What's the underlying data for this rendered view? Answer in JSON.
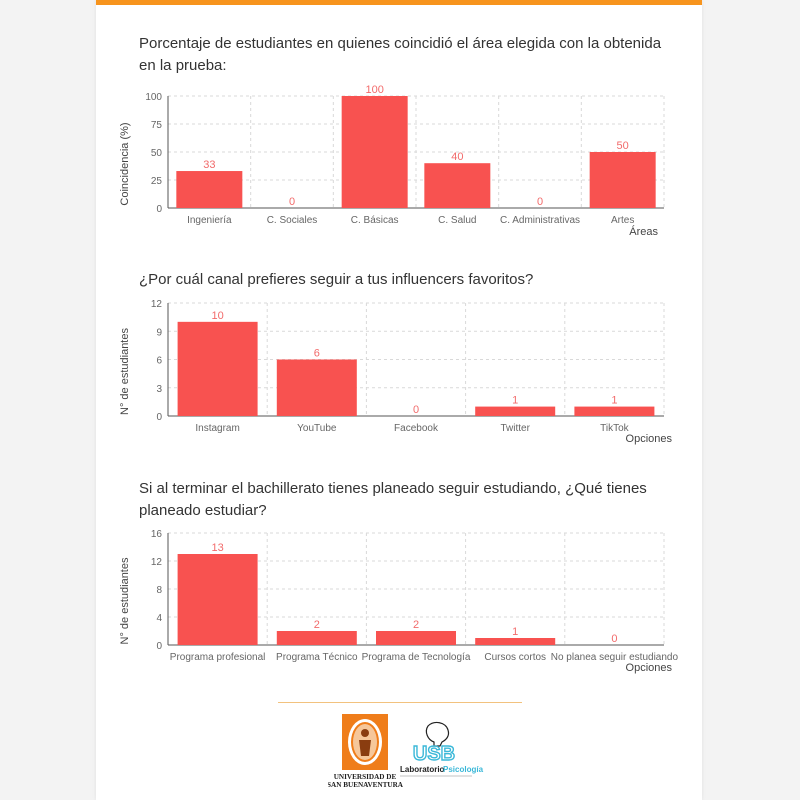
{
  "colors": {
    "accent_bar": "#f7941d",
    "bar_fill": "#f85250",
    "value_label": "#f26b6b",
    "grid": "#d9d9d9",
    "axis_text": "#666666",
    "logo_orange": "#ef7d1a",
    "logo_cyan": "#3bb8d8"
  },
  "logos": {
    "university_line1": "UNIVERSIDAD DE",
    "university_line2": "SAN BUENAVENTURA",
    "lab_letters": "USB",
    "lab_word1": "Laboratorio",
    "lab_word2": "Psicología",
    "lab_icon": "head-silhouette-icon",
    "university_icon": "university-seal-icon"
  },
  "chart_data": [
    {
      "type": "bar",
      "title": "Porcentaje de estudiantes en quienes coincidió el área elegida con la obtenida en la prueba:",
      "xlabel": "Áreas",
      "ylabel": "Coincidencia (%)",
      "ylim": [
        0,
        100
      ],
      "yticks": [
        0,
        25,
        50,
        75,
        100
      ],
      "grid": true,
      "categories": [
        "Ingeniería",
        "C. Sociales",
        "C. Básicas",
        "C. Salud",
        "C. Administrativas",
        "Artes"
      ],
      "values": [
        33,
        0,
        100,
        40,
        0,
        50
      ],
      "value_labels": [
        "33",
        "0",
        "100",
        "40",
        "0",
        "50"
      ]
    },
    {
      "type": "bar",
      "title": "¿Por cuál canal prefieres seguir a tus influencers favoritos?",
      "xlabel": "Opciones",
      "ylabel": "N° de estudiantes",
      "ylim": [
        0,
        12
      ],
      "yticks": [
        0,
        3,
        6,
        9,
        12
      ],
      "grid": true,
      "categories": [
        "Instagram",
        "YouTube",
        "Facebook",
        "Twitter",
        "TikTok"
      ],
      "values": [
        10,
        6,
        0,
        1,
        1
      ],
      "value_labels": [
        "10",
        "6",
        "0",
        "1",
        "1"
      ]
    },
    {
      "type": "bar",
      "title": "Si al terminar el bachillerato tienes planeado seguir estudiando, ¿Qué tienes planeado estudiar?",
      "xlabel": "Opciones",
      "ylabel": "N° de estudiantes",
      "ylim": [
        0,
        16
      ],
      "yticks": [
        0,
        4,
        8,
        12,
        16
      ],
      "grid": true,
      "categories": [
        "Programa profesional",
        "Programa Técnico",
        "Programa de Tecnología",
        "Cursos cortos",
        "No planea seguir estudiando"
      ],
      "values": [
        13,
        2,
        2,
        1,
        0
      ],
      "value_labels": [
        "13",
        "2",
        "2",
        "1",
        "0"
      ]
    }
  ]
}
